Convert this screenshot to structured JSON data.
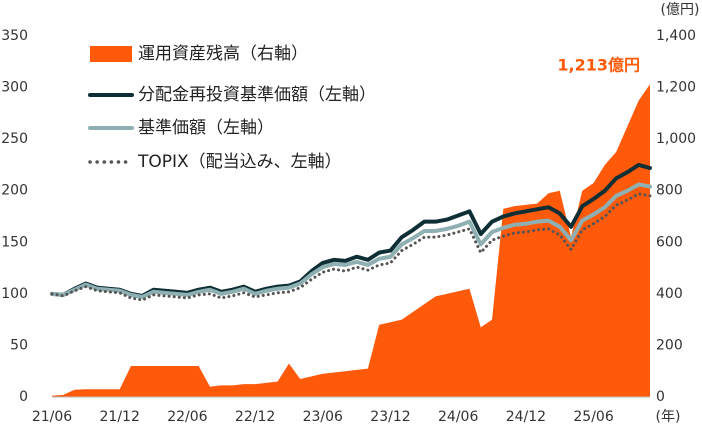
{
  "chart_data": {
    "type": "line",
    "categories": [
      "21/06",
      null,
      null,
      null,
      null,
      null,
      "21/12",
      null,
      null,
      null,
      null,
      null,
      "22/06",
      null,
      null,
      null,
      null,
      null,
      "22/12",
      null,
      null,
      null,
      null,
      null,
      "23/06",
      null,
      null,
      null,
      null,
      null,
      "23/12",
      null,
      null,
      null,
      null,
      null,
      "24/06",
      null,
      null,
      null,
      null,
      null,
      "24/12",
      null,
      null,
      null,
      null,
      null,
      "25/06",
      null,
      null,
      null,
      null,
      null
    ],
    "x_unit": "(年)",
    "y2_unit": "(億円)",
    "annotation": "1,213億円",
    "annotation_color": "#ff5a0a",
    "legend": "upper-left",
    "grid": false,
    "ylim": [
      0,
      350
    ],
    "yticks": [
      0,
      50,
      100,
      150,
      200,
      250,
      300,
      350
    ],
    "y2lim": [
      0,
      1400
    ],
    "y2ticks": [
      0,
      200,
      400,
      600,
      800,
      {
        "value": 1000,
        "label": "1,000"
      },
      {
        "value": 1200,
        "label": "1,200"
      },
      {
        "value": 1400,
        "label": "1,400"
      }
    ],
    "series": [
      {
        "name": "運用資産残高（右軸）",
        "color": "#ff5a0a",
        "style": "area",
        "axis": "y2",
        "values": [
          5,
          8,
          28,
          30,
          30,
          30,
          30,
          120,
          120,
          120,
          120,
          120,
          120,
          120,
          40,
          45,
          45,
          50,
          50,
          55,
          60,
          130,
          70,
          80,
          90,
          95,
          100,
          105,
          110,
          280,
          290,
          300,
          330,
          360,
          390,
          400,
          410,
          420,
          270,
          300,
          730,
          740,
          745,
          750,
          790,
          800,
          620,
          800,
          830,
          900,
          950,
          1050,
          1150,
          1213
        ]
      },
      {
        "name": "分配金再投資基準価額（左軸）",
        "color": "#0e2f35",
        "style": "line",
        "values": [
          100,
          99,
          105,
          110,
          106,
          105,
          104,
          100,
          98,
          104,
          103,
          102,
          101,
          104,
          106,
          102,
          104,
          107,
          102,
          105,
          107,
          108,
          112,
          122,
          130,
          133,
          132,
          136,
          133,
          140,
          142,
          155,
          162,
          170,
          170,
          172,
          176,
          180,
          158,
          170,
          175,
          178,
          180,
          182,
          184,
          178,
          165,
          185,
          192,
          200,
          212,
          218,
          225,
          222
        ]
      },
      {
        "name": "基準価額（左軸）",
        "color": "#8fb0b3",
        "style": "line",
        "values": [
          100,
          99,
          104,
          109,
          105,
          104,
          103,
          99,
          97,
          102,
          101,
          100,
          99,
          102,
          104,
          100,
          102,
          105,
          100,
          103,
          105,
          106,
          110,
          119,
          126,
          129,
          128,
          131,
          128,
          134,
          136,
          148,
          154,
          161,
          161,
          163,
          166,
          170,
          148,
          160,
          164,
          167,
          168,
          170,
          171,
          165,
          152,
          171,
          177,
          184,
          195,
          200,
          206,
          204
        ]
      },
      {
        "name": "TOPIX（配当込み、左軸）",
        "color": "#555555",
        "style": "dotted",
        "values": [
          100,
          98,
          103,
          107,
          103,
          102,
          101,
          96,
          94,
          99,
          98,
          97,
          96,
          99,
          100,
          96,
          98,
          101,
          97,
          99,
          101,
          102,
          106,
          114,
          121,
          124,
          122,
          126,
          123,
          128,
          130,
          142,
          148,
          155,
          155,
          157,
          160,
          163,
          140,
          152,
          156,
          159,
          160,
          162,
          163,
          157,
          143,
          162,
          168,
          175,
          186,
          191,
          197,
          195
        ]
      }
    ]
  }
}
